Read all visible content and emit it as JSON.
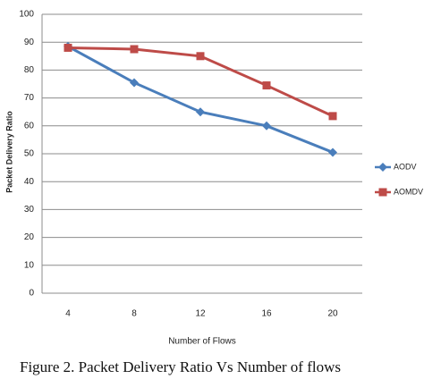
{
  "chart_data": {
    "type": "line",
    "xlabel": "Number of Flows",
    "ylabel": "Packet Delivery Ratio",
    "caption": "Figure 2. Packet Delivery Ratio Vs Number of flows",
    "categories": [
      "4",
      "8",
      "12",
      "16",
      "20"
    ],
    "series": [
      {
        "name": "AODV",
        "color": "#4a7ebb",
        "marker": "diamond",
        "values": [
          88.5,
          75.5,
          65,
          60,
          50.5
        ]
      },
      {
        "name": "AOMDV",
        "color": "#be4b48",
        "marker": "square",
        "values": [
          88,
          87.5,
          85,
          74.5,
          63.5
        ]
      }
    ],
    "ylim": [
      0,
      100
    ],
    "yticks": [
      0,
      10,
      20,
      30,
      40,
      50,
      60,
      70,
      80,
      90,
      100
    ],
    "grid": true,
    "legend": "right"
  }
}
